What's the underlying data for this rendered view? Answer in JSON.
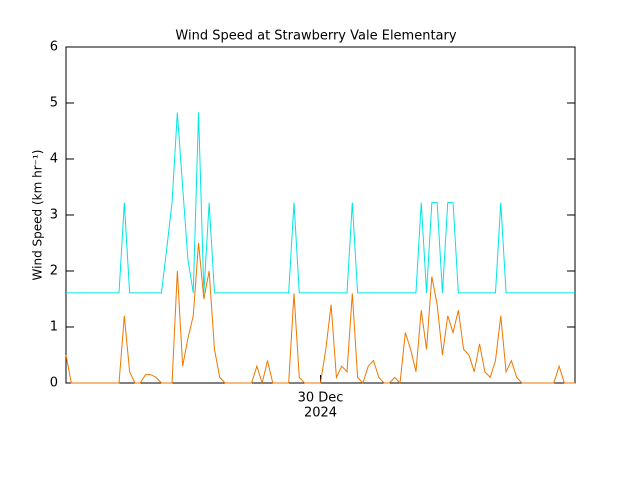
{
  "chart_data": {
    "type": "line",
    "title": "Wind Speed at Strawberry Vale Elementary",
    "y_label": "Wind Speed (km hr⁻¹)",
    "x_sublabel": "2024",
    "xlim": [
      0,
      48
    ],
    "xticks": [
      {
        "value": 24,
        "label": "30 Dec"
      }
    ],
    "ylim": [
      0,
      6
    ],
    "yticks": [
      0,
      1,
      2,
      3,
      4,
      5,
      6
    ],
    "grid": false,
    "x": [
      0,
      0.5,
      1,
      1.5,
      2,
      2.5,
      3,
      3.5,
      4,
      4.5,
      5,
      5.5,
      6,
      6.5,
      7,
      7.5,
      8,
      8.5,
      9,
      9.5,
      10,
      10.5,
      11,
      11.5,
      12,
      12.5,
      13,
      13.5,
      14,
      14.5,
      15,
      15.5,
      16,
      16.5,
      17,
      17.5,
      18,
      18.5,
      19,
      19.5,
      20,
      20.5,
      21,
      21.5,
      22,
      22.5,
      23,
      23.5,
      24,
      24.5,
      25,
      25.5,
      26,
      26.5,
      27,
      27.5,
      28,
      28.5,
      29,
      29.5,
      30,
      30.5,
      31,
      31.5,
      32,
      32.5,
      33,
      33.5,
      34,
      34.5,
      35,
      35.5,
      36,
      36.5,
      37,
      37.5,
      38,
      38.5,
      39,
      39.5,
      40,
      40.5,
      41,
      41.5,
      42,
      42.5,
      43,
      43.5,
      44,
      44.5,
      45,
      45.5,
      46,
      46.5,
      47,
      47.5,
      48
    ],
    "series": [
      {
        "color": "#00e5e5",
        "values": [
          1.61,
          1.61,
          1.61,
          1.61,
          1.61,
          1.61,
          1.61,
          1.61,
          1.61,
          1.61,
          1.61,
          3.22,
          1.61,
          1.61,
          1.61,
          1.61,
          1.61,
          1.61,
          1.61,
          2.4,
          3.22,
          4.83,
          3.5,
          2.2,
          1.61,
          4.83,
          1.61,
          3.22,
          1.61,
          1.61,
          1.61,
          1.61,
          1.61,
          1.61,
          1.61,
          1.61,
          1.61,
          1.61,
          1.61,
          1.61,
          1.61,
          1.61,
          1.61,
          3.22,
          1.61,
          1.61,
          1.61,
          1.61,
          1.61,
          1.61,
          1.61,
          1.61,
          1.61,
          1.61,
          3.22,
          1.61,
          1.61,
          1.61,
          1.61,
          1.61,
          1.61,
          1.61,
          1.61,
          1.61,
          1.61,
          1.61,
          1.61,
          3.22,
          1.61,
          3.22,
          3.22,
          1.61,
          3.22,
          3.22,
          1.61,
          1.61,
          1.61,
          1.61,
          1.61,
          1.61,
          1.61,
          1.61,
          3.22,
          1.61,
          1.61,
          1.61,
          1.61,
          1.61,
          1.61,
          1.61,
          1.61,
          1.61,
          1.61,
          1.61,
          1.61,
          1.61,
          1.61
        ]
      },
      {
        "color": "#ee7700",
        "values": [
          0.5,
          0,
          0,
          0,
          0,
          0,
          0,
          0,
          0,
          0,
          0,
          1.2,
          0.2,
          0,
          0,
          0.15,
          0.15,
          0.1,
          0,
          0,
          0,
          2.0,
          0.3,
          0.8,
          1.2,
          2.5,
          1.5,
          2.0,
          0.6,
          0.1,
          0,
          0,
          0,
          0,
          0,
          0,
          0.3,
          0,
          0.4,
          0,
          0,
          0,
          0,
          1.6,
          0.1,
          0,
          0,
          0,
          0,
          0.6,
          1.4,
          0.1,
          0.3,
          0.2,
          1.6,
          0.1,
          0,
          0.3,
          0.4,
          0.1,
          0,
          0,
          0.1,
          0,
          0.9,
          0.6,
          0.2,
          1.3,
          0.6,
          1.9,
          1.4,
          0.5,
          1.2,
          0.9,
          1.3,
          0.6,
          0.5,
          0.2,
          0.7,
          0.2,
          0.1,
          0.4,
          1.2,
          0.2,
          0.4,
          0.1,
          0,
          0,
          0,
          0,
          0,
          0,
          0,
          0.3,
          0,
          0,
          0
        ]
      }
    ]
  }
}
